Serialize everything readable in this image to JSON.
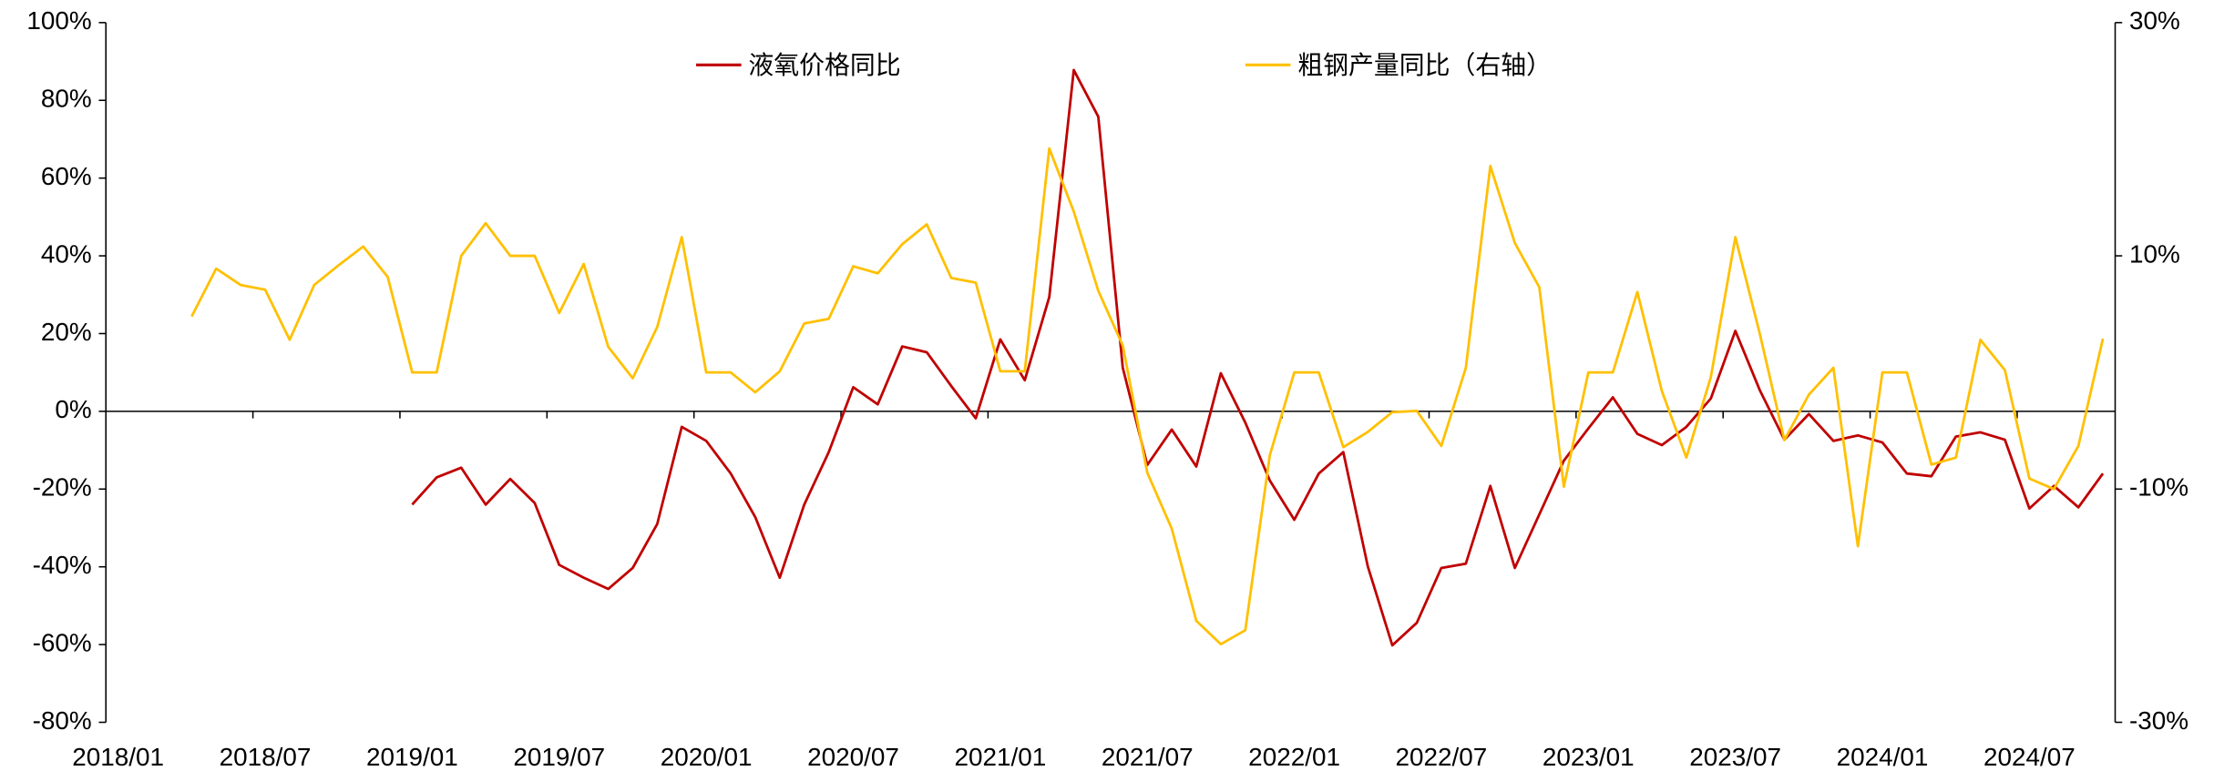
{
  "chart_data": {
    "type": "line",
    "categories": [
      "2018/01",
      null,
      null,
      null,
      null,
      null,
      "2018/07",
      null,
      null,
      null,
      null,
      null,
      "2019/01",
      null,
      null,
      null,
      null,
      null,
      "2019/07",
      null,
      null,
      null,
      null,
      null,
      "2020/01",
      null,
      null,
      null,
      null,
      null,
      "2020/07",
      null,
      null,
      null,
      null,
      null,
      "2021/01",
      null,
      null,
      null,
      null,
      null,
      "2021/07",
      null,
      null,
      null,
      null,
      null,
      "2022/01",
      null,
      null,
      null,
      null,
      null,
      "2022/07",
      null,
      null,
      null,
      null,
      null,
      "2023/01",
      null,
      null,
      null,
      null,
      null,
      "2023/07",
      null,
      null,
      null,
      null,
      null,
      "2024/01",
      null,
      null,
      null,
      null,
      null,
      "2024/07",
      null,
      null,
      null
    ],
    "series": [
      {
        "name": "液氧价格同比",
        "color": "#C00000",
        "values": [
          null,
          null,
          null,
          null,
          null,
          null,
          null,
          null,
          null,
          null,
          null,
          null,
          -24,
          -17,
          -14.5,
          -24,
          -17.4,
          -23.6,
          -39.5,
          -42.8,
          -45.7,
          -40.3,
          -29,
          -4,
          -7.6,
          -16,
          -27.2,
          -42.8,
          -24,
          -10.5,
          6.2,
          1.8,
          16.7,
          15.2,
          6.5,
          -1.8,
          18.5,
          8,
          29.4,
          87.8,
          75.8,
          11.2,
          -13.8,
          -4.7,
          -14.2,
          9.8,
          -2.9,
          -17.8,
          -27.9,
          -16,
          -10.5,
          -39.9,
          -60.2,
          -54.4,
          -40.3,
          -39.2,
          -19.2,
          -40.3,
          -26.5,
          -12.7,
          -4.4,
          3.6,
          -5.8,
          -8.7,
          -4,
          3.3,
          20.7,
          5.4,
          -7.3,
          -0.7,
          -7.6,
          -6.2,
          -8,
          -16,
          -16.7,
          -6.5,
          -5.4,
          -7.3,
          -25,
          -19.2,
          -24.7,
          -16
        ]
      },
      {
        "name": "粗钢产量同比（右轴）",
        "color": "#FFC000",
        "axis": "y2",
        "values": [
          null,
          null,
          null,
          4.8,
          8.9,
          7.5,
          7.1,
          2.8,
          7.5,
          9.2,
          10.8,
          8.2,
          0,
          0,
          10,
          12.8,
          10,
          10,
          5.1,
          9.3,
          2.2,
          -0.5,
          3.9,
          11.6,
          0,
          0,
          -1.7,
          0.1,
          4.2,
          4.6,
          9.1,
          8.5,
          11,
          12.7,
          8.1,
          7.7,
          0.1,
          0.1,
          19.2,
          13.8,
          7,
          2.3,
          -8.6,
          -13.4,
          -21.3,
          -23.3,
          -22.1,
          -7.1,
          0,
          0,
          -6.4,
          -5.1,
          -3.4,
          -3.3,
          -6.3,
          0.4,
          17.7,
          11.1,
          7.3,
          -9.8,
          0,
          0,
          6.9,
          -1.6,
          -7.3,
          -0.4,
          11.6,
          3.3,
          -5.8,
          -1.9,
          0.4,
          -14.9,
          0,
          0,
          -7.9,
          -7.3,
          2.8,
          0.2,
          -9.1,
          -10,
          -6.3,
          2.9
        ]
      }
    ],
    "ylim": [
      -80,
      100
    ],
    "yticks": [
      {
        "value": -80,
        "label": "-80%"
      },
      {
        "value": -60,
        "label": "-60%"
      },
      {
        "value": -40,
        "label": "-40%"
      },
      {
        "value": -20,
        "label": "-20%"
      },
      {
        "value": 0,
        "label": "0%"
      },
      {
        "value": 20,
        "label": "20%"
      },
      {
        "value": 40,
        "label": "40%"
      },
      {
        "value": 60,
        "label": "60%"
      },
      {
        "value": 80,
        "label": "80%"
      },
      {
        "value": 100,
        "label": "100%"
      }
    ],
    "y2lim": [
      -30,
      30
    ],
    "y2ticks": [
      {
        "value": -30,
        "label": "-30%"
      },
      {
        "value": -10,
        "label": "-10%"
      },
      {
        "value": 10,
        "label": "10%"
      },
      {
        "value": 30,
        "label": "30%"
      }
    ],
    "legend": "top"
  }
}
